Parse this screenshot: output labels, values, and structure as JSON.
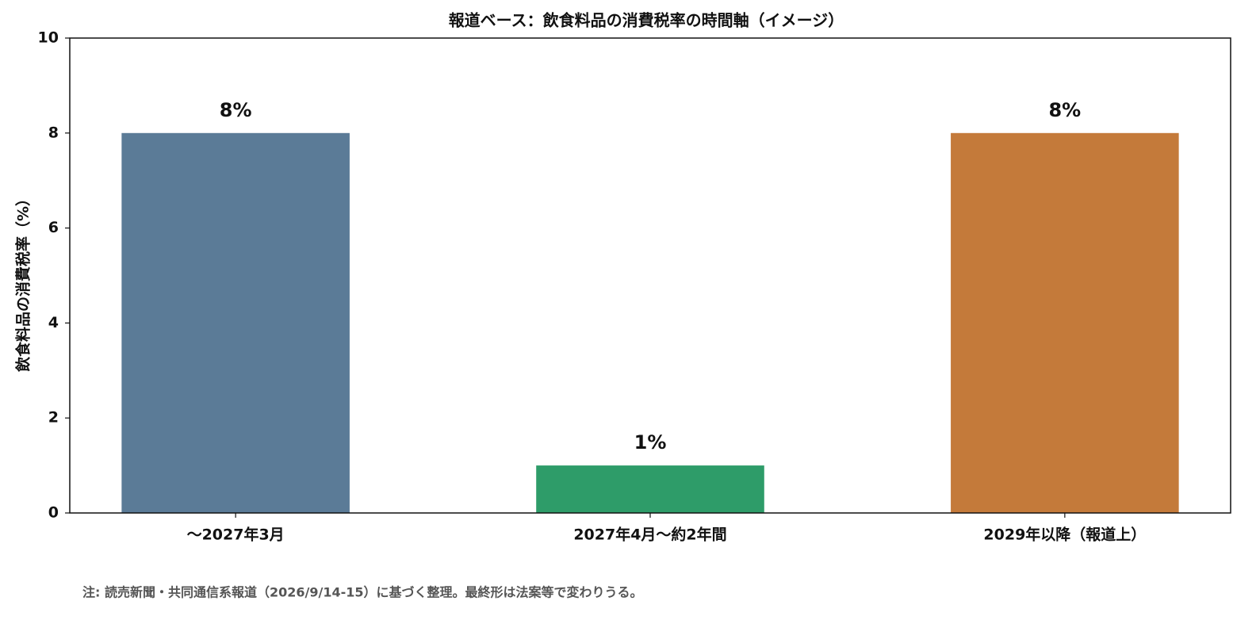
{
  "chart_data": {
    "type": "bar",
    "title": "報道ベース：飲食料品の消費税率の時間軸（イメージ）",
    "y_label": "飲食料品の消費税率（%）",
    "categories": [
      "〜2027年3月",
      "2027年4月〜約2年間",
      "2029年以降（報道上）"
    ],
    "values": [
      8,
      1,
      8
    ],
    "value_labels": [
      "8%",
      "1%",
      "8%"
    ],
    "colors": [
      "#5b7b97",
      "#2e9c69",
      "#c47a3a"
    ],
    "ylim": [
      0,
      10
    ],
    "yticks": [
      0,
      2,
      4,
      6,
      8,
      10
    ],
    "grid": false,
    "note": "注: 読売新聞・共同通信系報道（2026/9/14-15）に基づく整理。最終形は法案等で変わりうる。"
  }
}
